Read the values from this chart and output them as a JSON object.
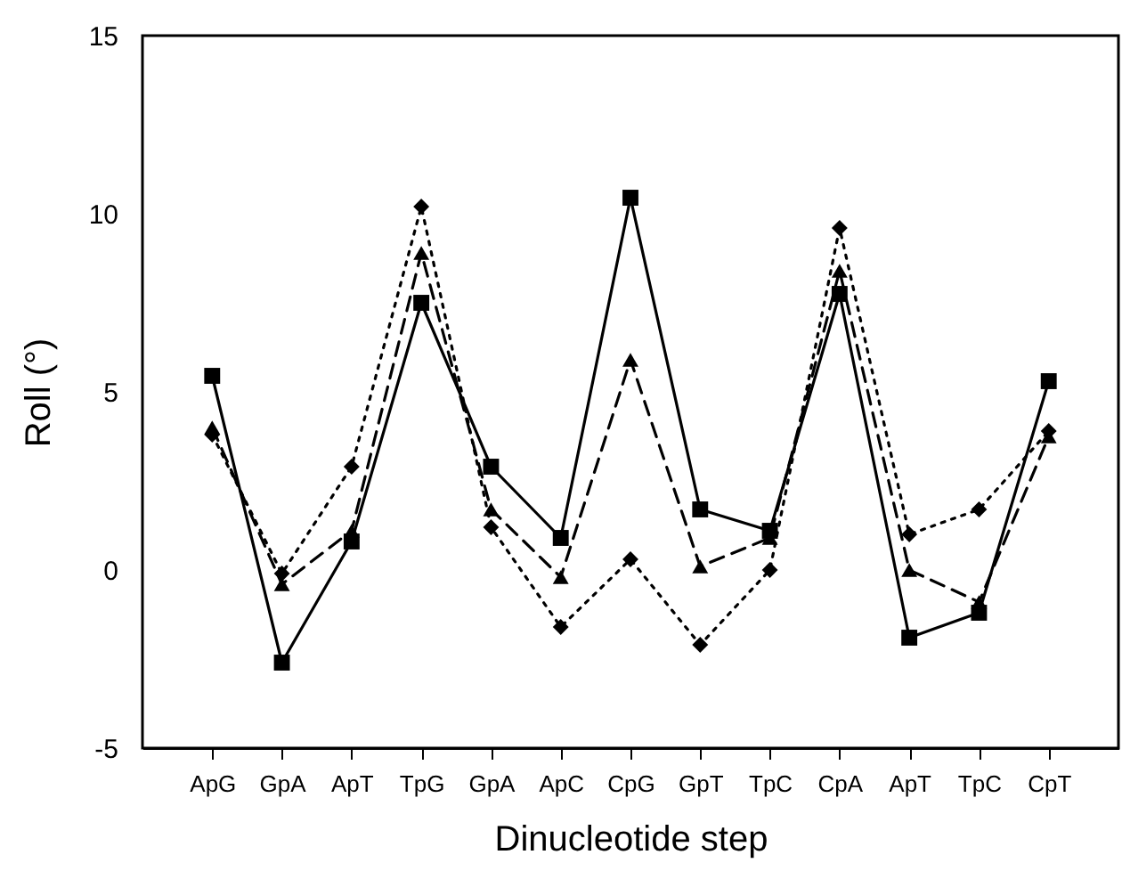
{
  "chart_data": {
    "type": "line",
    "xlabel": "Dinucleotide step",
    "ylabel": "Roll (°)",
    "categories": [
      "ApG",
      "GpA",
      "ApT",
      "TpG",
      "GpA",
      "ApC",
      "CpG",
      "GpT",
      "TpC",
      "CpA",
      "ApT",
      "TpC",
      "CpT"
    ],
    "ylim": [
      -5,
      15
    ],
    "yticks": [
      -5,
      0,
      5,
      10,
      15
    ],
    "grid": false,
    "series": [
      {
        "color": "#000000",
        "marker": "square",
        "line_style": "solid",
        "values": [
          5.45,
          -2.6,
          0.8,
          7.5,
          2.9,
          0.9,
          10.45,
          1.7,
          1.1,
          7.75,
          -1.9,
          -1.2,
          5.3
        ]
      },
      {
        "color": "#000000",
        "marker": "triangle",
        "line_style": "dashed",
        "values": [
          4.0,
          -0.4,
          1.1,
          8.9,
          1.7,
          -0.2,
          5.9,
          0.1,
          0.9,
          8.4,
          0.0,
          -0.9,
          3.75
        ]
      },
      {
        "color": "#000000",
        "marker": "diamond",
        "line_style": "dotted",
        "values": [
          3.8,
          -0.1,
          2.9,
          10.2,
          1.2,
          -1.6,
          0.3,
          -2.1,
          0.0,
          9.6,
          1.0,
          1.7,
          3.9
        ]
      }
    ]
  }
}
